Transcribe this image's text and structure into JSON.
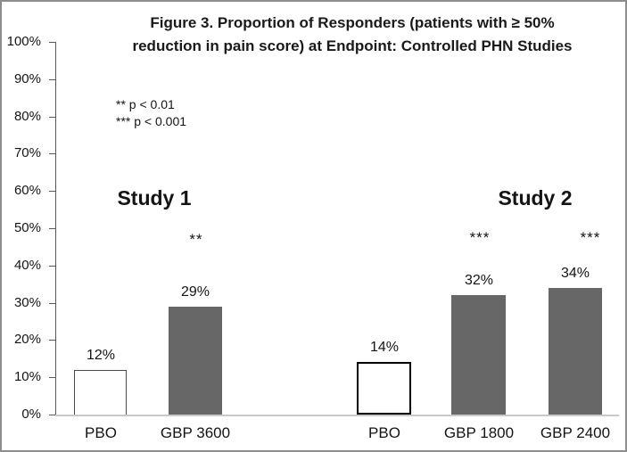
{
  "chart_data": {
    "type": "bar",
    "title": "Figure 3. Proportion of Responders (patients with ≥ 50% reduction in pain score) at Endpoint: Controlled PHN Studies",
    "title_lines": [
      "Figure 3. Proportion of Responders (patients with ≥ 50%",
      "reduction in pain score) at Endpoint: Controlled PHN Studies"
    ],
    "significance_legend": {
      "line1": "** p < 0.01",
      "line2": "*** p < 0.001"
    },
    "ylim": [
      0,
      100
    ],
    "grid": "off",
    "ytick_labels": [
      "100%",
      "90%",
      "80%",
      "70%",
      "60%",
      "50%",
      "40%",
      "30%",
      "20%",
      "10%",
      "0%"
    ],
    "groups": [
      {
        "name": "Study 1",
        "bars": [
          {
            "label": "PBO",
            "value": 12,
            "value_label": "12%",
            "significance": "",
            "fill": "placebo"
          },
          {
            "label": "GBP 3600",
            "value": 29,
            "value_label": "29%",
            "significance": "**",
            "fill": "treatment"
          }
        ]
      },
      {
        "name": "Study 2",
        "bars": [
          {
            "label": "PBO",
            "value": 14,
            "value_label": "14%",
            "significance": "",
            "fill": "placebo"
          },
          {
            "label": "GBP 1800",
            "value": 32,
            "value_label": "32%",
            "significance": "***",
            "fill": "treatment"
          },
          {
            "label": "GBP 2400",
            "value": 34,
            "value_label": "34%",
            "significance": "***",
            "fill": "treatment"
          }
        ]
      }
    ],
    "colors": {
      "treatment_bar": "#676767",
      "placebo_bar": "#ffffff",
      "axis_line": "#595959",
      "baseline": "#c9c9c9"
    }
  }
}
